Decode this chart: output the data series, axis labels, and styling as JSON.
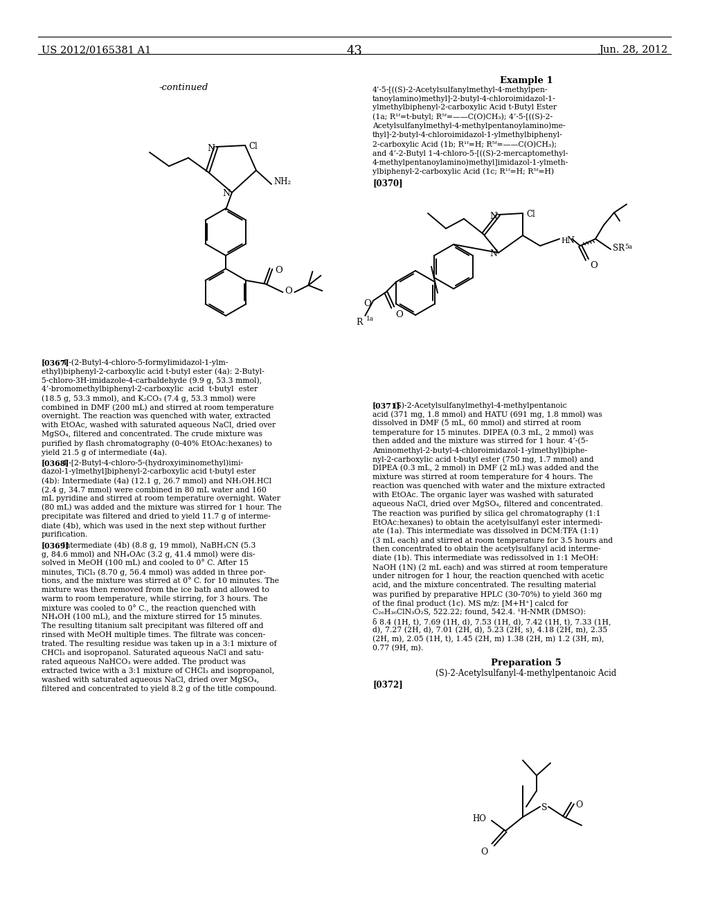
{
  "page_number": "43",
  "patent_number": "US 2012/0165381 A1",
  "date": "Jun. 28, 2012",
  "background_color": "#ffffff",
  "text_color": "#000000"
}
